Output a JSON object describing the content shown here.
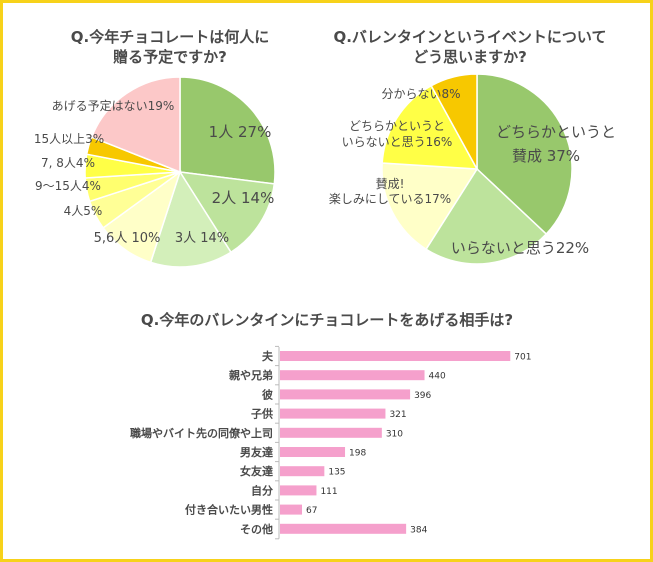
{
  "chart_data": [
    {
      "type": "pie",
      "title_lines": [
        "Q.今年チョコレートは何人に",
        "贈る予定ですか?"
      ],
      "slices": [
        {
          "label": "1人",
          "value": 27,
          "display": "1人  27%",
          "color": "#98c86c"
        },
        {
          "label": "2人",
          "value": 14,
          "display": "2人 14%",
          "color": "#bde39c"
        },
        {
          "label": "3人",
          "value": 14,
          "display": "3人 14%",
          "color": "#d3efba"
        },
        {
          "label": "5,6人",
          "value": 10,
          "display": "5,6人 10%",
          "color": "#ffffc8"
        },
        {
          "label": "4人",
          "value": 5,
          "display": "4人5%",
          "color": "#ffff96"
        },
        {
          "label": "9～15人",
          "value": 4,
          "display": "9～15人4%",
          "color": "#ffff6e"
        },
        {
          "label": "7, 8人",
          "value": 4,
          "display": "7, 8人4%",
          "color": "#ffff46"
        },
        {
          "label": "15人以上",
          "value": 3,
          "display": "15人以上3%",
          "color": "#f7c800"
        },
        {
          "label": "あげる予定はない",
          "value": 19,
          "display": "あげる予定はない19%",
          "color": "#fcc8c8"
        }
      ]
    },
    {
      "type": "pie",
      "title_lines": [
        "Q.バレンタインというイベントについて",
        "どう思いますか?"
      ],
      "slices": [
        {
          "label": "どちらかというと賛成",
          "value": 37,
          "display_lines": [
            "どちらかというと",
            "賛成  37%"
          ],
          "color": "#98c86c"
        },
        {
          "label": "いらないと思う",
          "value": 22,
          "display_lines": [
            "いらないと思う22%"
          ],
          "color": "#bde39c"
        },
        {
          "label": "賛成!楽しみにしている",
          "value": 17,
          "display_lines": [
            "賛成!",
            "楽しみにしている17%"
          ],
          "color": "#ffffc8"
        },
        {
          "label": "どちらかというといらないと思う",
          "value": 16,
          "display_lines": [
            "どちらかというと",
            "いらないと思う16%"
          ],
          "color": "#ffff46"
        },
        {
          "label": "分からない",
          "value": 8,
          "display_lines": [
            "分からない8%"
          ],
          "color": "#f7c800"
        }
      ]
    },
    {
      "type": "bar",
      "orientation": "horizontal",
      "title": "Q.今年のバレンタインにチョコレートをあげる相手は?",
      "categories": [
        "夫",
        "親や兄弟",
        "彼",
        "子供",
        "職場やバイト先の同僚や上司",
        "男友達",
        "女友達",
        "自分",
        "付き合いたい男性",
        "その他"
      ],
      "values": [
        701,
        440,
        396,
        321,
        310,
        198,
        135,
        111,
        67,
        384
      ],
      "xlim": [
        0,
        800
      ],
      "bar_color": "#f5a0cc"
    }
  ]
}
